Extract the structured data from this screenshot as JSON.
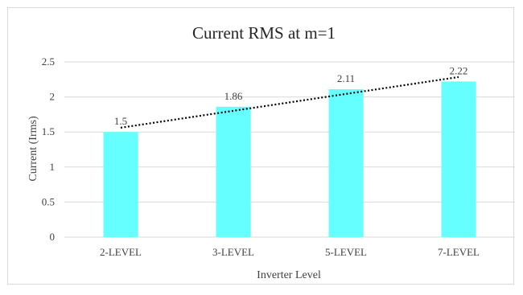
{
  "chart_data": {
    "type": "bar",
    "title": "Current RMS at m=1",
    "xlabel": "Inverter Level",
    "ylabel": "Current (Irms)",
    "categories": [
      "2-LEVEL",
      "3-LEVEL",
      "5-LEVEL",
      "7-LEVEL"
    ],
    "values": [
      1.5,
      1.86,
      2.11,
      2.22
    ],
    "data_labels": [
      "1.5",
      "1.86",
      "2.11",
      "2.22"
    ],
    "ylim": [
      0,
      2.5
    ],
    "yticks": [
      0,
      0.5,
      1,
      1.5,
      2,
      2.5
    ],
    "ytick_labels": [
      "0",
      "0.5",
      "1",
      "1.5",
      "2",
      "2.5"
    ],
    "grid": true,
    "legend": "none",
    "trendline": {
      "type": "linear",
      "style": "dotted",
      "color": "#000000"
    },
    "colors": {
      "bar": "#66ffff",
      "grid": "#d9d9d9",
      "axis": "#d9d9d9"
    }
  }
}
